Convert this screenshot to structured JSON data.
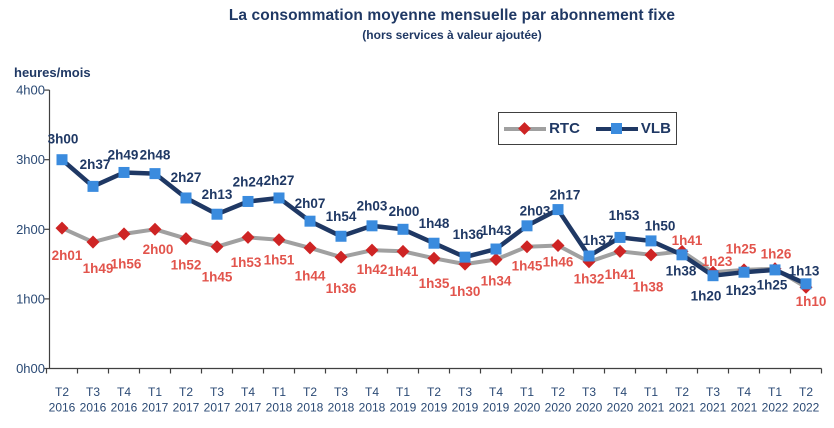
{
  "chart_data": {
    "type": "line",
    "title": "La consommation moyenne mensuelle par abonnement fixe",
    "subtitle": "(hors services à valeur ajoutée)",
    "ylabel": "heures/mois",
    "grid": false,
    "legend_position": "top-right-inside",
    "y_ticks": [
      {
        "label": "0h00",
        "value": 0
      },
      {
        "label": "1h00",
        "value": 1
      },
      {
        "label": "2h00",
        "value": 2
      },
      {
        "label": "3h00",
        "value": 3
      },
      {
        "label": "4h00",
        "value": 4
      }
    ],
    "ylim": [
      0,
      4
    ],
    "categories": [
      {
        "quarter": "T2",
        "year": "2016"
      },
      {
        "quarter": "T3",
        "year": "2016"
      },
      {
        "quarter": "T4",
        "year": "2016"
      },
      {
        "quarter": "T1",
        "year": "2017"
      },
      {
        "quarter": "T2",
        "year": "2017"
      },
      {
        "quarter": "T3",
        "year": "2017"
      },
      {
        "quarter": "T4",
        "year": "2017"
      },
      {
        "quarter": "T1",
        "year": "2018"
      },
      {
        "quarter": "T2",
        "year": "2018"
      },
      {
        "quarter": "T3",
        "year": "2018"
      },
      {
        "quarter": "T4",
        "year": "2018"
      },
      {
        "quarter": "T1",
        "year": "2019"
      },
      {
        "quarter": "T2",
        "year": "2019"
      },
      {
        "quarter": "T3",
        "year": "2019"
      },
      {
        "quarter": "T4",
        "year": "2019"
      },
      {
        "quarter": "T1",
        "year": "2020"
      },
      {
        "quarter": "T2",
        "year": "2020"
      },
      {
        "quarter": "T3",
        "year": "2020"
      },
      {
        "quarter": "T4",
        "year": "2020"
      },
      {
        "quarter": "T1",
        "year": "2021"
      },
      {
        "quarter": "T2",
        "year": "2021"
      },
      {
        "quarter": "T3",
        "year": "2021"
      },
      {
        "quarter": "T4",
        "year": "2021"
      },
      {
        "quarter": "T1",
        "year": "2022"
      },
      {
        "quarter": "T2",
        "year": "2022"
      }
    ],
    "series": [
      {
        "name": "RTC",
        "marker": "diamond",
        "color_line": "#A0A0A0",
        "color_marker": "#CE2424",
        "color_label": "#E2544C",
        "values": [
          "2h01",
          "1h49",
          "1h56",
          "2h00",
          "1h52",
          "1h45",
          "1h53",
          "1h51",
          "1h44",
          "1h36",
          "1h42",
          "1h41",
          "1h35",
          "1h30",
          "1h34",
          "1h45",
          "1h46",
          "1h32",
          "1h41",
          "1h38",
          "1h41",
          "1h23",
          "1h25",
          "1h26",
          "1h10"
        ]
      },
      {
        "name": "VLB",
        "marker": "square",
        "color_line": "#1F3864",
        "color_marker": "#3A8BDE",
        "color_label": "#1F3864",
        "values": [
          "3h00",
          "2h37",
          "2h49",
          "2h48",
          "2h27",
          "2h13",
          "2h24",
          "2h27",
          "2h07",
          "1h54",
          "2h03",
          "2h00",
          "1h48",
          "1h36",
          "1h43",
          "2h03",
          "2h17",
          "1h37",
          "1h53",
          "1h50",
          "1h38",
          "1h20",
          "1h23",
          "1h25",
          "1h13"
        ]
      }
    ],
    "label_offsets": {
      "RTC": [
        [
          5,
          27
        ],
        [
          5,
          26
        ],
        [
          2,
          30
        ],
        [
          3,
          20
        ],
        [
          0,
          26
        ],
        [
          0,
          30
        ],
        [
          -2,
          25
        ],
        [
          0,
          20
        ],
        [
          0,
          28
        ],
        [
          0,
          31
        ],
        [
          0,
          19
        ],
        [
          0,
          20
        ],
        [
          0,
          25
        ],
        [
          0,
          27
        ],
        [
          0,
          21
        ],
        [
          0,
          19
        ],
        [
          0,
          16
        ],
        [
          0,
          17
        ],
        [
          0,
          23
        ],
        [
          -3,
          32
        ],
        [
          5,
          -11
        ],
        [
          4,
          -11
        ],
        [
          -3,
          -21
        ],
        [
          1,
          -15
        ],
        [
          5,
          14
        ]
      ],
      "VLB": [
        [
          1,
          -21
        ],
        [
          2,
          -22
        ],
        [
          -1,
          -18
        ],
        [
          0,
          -19
        ],
        [
          0,
          -21
        ],
        [
          0,
          -20
        ],
        [
          0,
          -20
        ],
        [
          0,
          -18
        ],
        [
          0,
          -18
        ],
        [
          0,
          -20
        ],
        [
          0,
          -20
        ],
        [
          1,
          -18
        ],
        [
          0,
          -20
        ],
        [
          3,
          -23
        ],
        [
          0,
          -19
        ],
        [
          8,
          -15
        ],
        [
          7,
          -15
        ],
        [
          9,
          -16
        ],
        [
          4,
          -22
        ],
        [
          9,
          -15
        ],
        [
          -1,
          16
        ],
        [
          -7,
          20
        ],
        [
          -3,
          18
        ],
        [
          -3,
          15
        ],
        [
          -2,
          -13
        ]
      ]
    },
    "axis_color": "#404040",
    "axis_text_color": "#2B4A75",
    "legend_border_color": "#404040"
  }
}
